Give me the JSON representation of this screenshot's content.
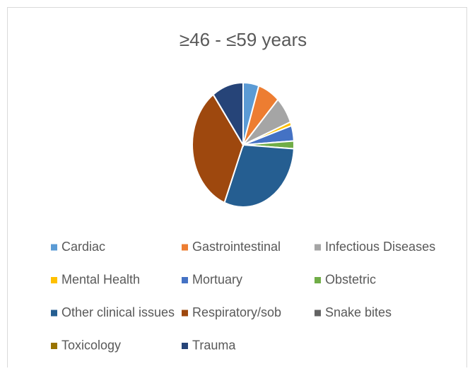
{
  "chart_data": {
    "type": "pie",
    "title": "≥46 - ≤59 years",
    "categories": [
      "Cardiac",
      "Gastrointestinal",
      "Infectious Diseases",
      "Mental Health",
      "Mortuary",
      "Obstetric",
      "Other clinical issues",
      "Respiratory/sob",
      "Snake bites",
      "Toxicology",
      "Trauma"
    ],
    "values": [
      5,
      7,
      7,
      1,
      4,
      2,
      30,
      34,
      0,
      0,
      10
    ],
    "colors": [
      "#5b9bd5",
      "#ed7d31",
      "#a5a5a5",
      "#ffc000",
      "#4472c4",
      "#70ad47",
      "#255e91",
      "#9e480e",
      "#636363",
      "#997300",
      "#264478"
    ],
    "legend": "bottom"
  }
}
